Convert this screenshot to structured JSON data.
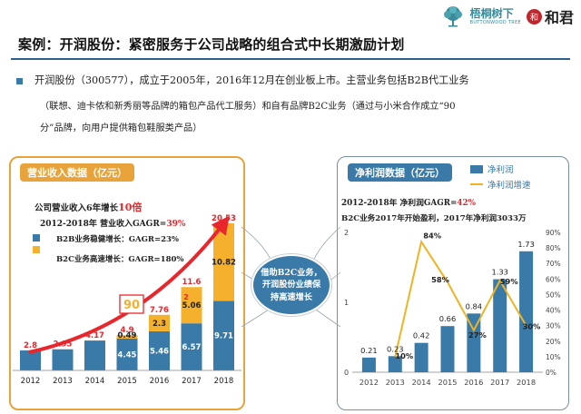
{
  "header": {
    "brand1_cn": "梧桐树下",
    "brand1_en": "BUTTONWOOD TREE",
    "brand2_seal": "和",
    "brand2_text": "和君"
  },
  "title": "案例：开润股份：紧密服务于公司战略的组合式中长期激励计划",
  "intro": {
    "line1": "开润股份（300577），成立于2005年，2016年12月在创业板上市。主营业务包括B2B代工业务",
    "line2": "（联想、迪卡侬和新秀丽等品牌的箱包产品代工服务）和自有品牌B2C业务（通过与小米合作成立“90",
    "line3": "分”品牌，向用户提供箱包鞋服类产品）"
  },
  "bubble": {
    "line1": "借助B2C业务，",
    "line2": "开润股份业绩保",
    "line3": "持高速增长"
  },
  "colors": {
    "accent_orange": "#e8a33a",
    "bar_blue": "#3a7aa8",
    "bar_orange": "#f5b12c",
    "red": "#e8262b",
    "line_yellow": "#f0b323"
  },
  "chart_data": [
    {
      "type": "bar",
      "stacked": true,
      "title": "营业收入数据（亿元）",
      "categories": [
        "2012",
        "2013",
        "2014",
        "2015",
        "2016",
        "2017",
        "2018"
      ],
      "series": [
        {
          "name": "B2B业务稳健增长：GAGR=23%",
          "values": [
            2.8,
            2.95,
            4.17,
            4.45,
            5.46,
            6.57,
            9.71
          ]
        },
        {
          "name": "B2C业务高速增长：GAGR=180%",
          "values": [
            0,
            0,
            0,
            0.49,
            2.3,
            5.06,
            10.82
          ]
        }
      ],
      "totals": [
        2.8,
        2.95,
        4.17,
        4.9,
        7.76,
        11.6,
        20.53
      ],
      "total_labels": [
        "2.8",
        "2.95",
        "4.17",
        "4.9",
        "7.76",
        "11.6",
        "20.53"
      ],
      "b2b_labels": [
        "",
        "",
        "",
        "4.45",
        "5.46",
        "6.57",
        "9.71"
      ],
      "b2c_labels": [
        "",
        "",
        "",
        "0.49",
        "2.3",
        "5.06",
        "10.82"
      ],
      "ylim": [
        0,
        22
      ],
      "annotations": {
        "growth_prefix": "公司营业收入6年增长",
        "growth_multiple": "10倍",
        "cagr_prefix": "2012-2018年 营业收入GAGR=",
        "cagr_value": "39%",
        "b2b_text": "B2B业务稳健增长：GAGR=23%",
        "b2c_text": "B2C业务高速增长：GAGR=180%",
        "badge_90": "90",
        "tiny_label": "2"
      }
    },
    {
      "type": "bar+line",
      "title": "净利润数据（亿元）",
      "categories": [
        "2012",
        "2013",
        "2014",
        "2015",
        "2016",
        "2017",
        "2018"
      ],
      "series": [
        {
          "name": "净利润",
          "values": [
            0.21,
            0.23,
            0.42,
            0.66,
            0.84,
            1.33,
            1.73
          ]
        },
        {
          "name": "净利润增速",
          "values": [
            null,
            10,
            84,
            58,
            27,
            59,
            30
          ],
          "unit": "%"
        }
      ],
      "bar_labels": [
        "0.21",
        "0.23",
        "0.42",
        "0.66",
        "0.84",
        "1.33",
        "1.73"
      ],
      "line_labels": [
        "",
        "10%",
        "84%",
        "58%",
        "27%",
        "59%",
        "30%"
      ],
      "ylim_left": [
        0,
        2
      ],
      "ylim_right": [
        0,
        90
      ],
      "left_ticks": [
        "0",
        "1",
        "2"
      ],
      "right_ticks": [
        "0%",
        "10%",
        "20%",
        "30%",
        "40%",
        "50%",
        "60%",
        "70%",
        "80%",
        "90%"
      ],
      "annotations": {
        "cagr_prefix": "2012-2018年 净利润GAGR=",
        "cagr_value": "42%",
        "b2c_note": "B2C业务2017年开始盈利，2017年净利润3033万"
      }
    }
  ]
}
